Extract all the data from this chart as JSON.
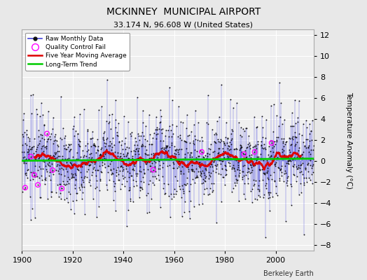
{
  "title": "MCKINNEY  MUNICIPAL AIRPORT",
  "subtitle": "33.174 N, 96.608 W (United States)",
  "attribution": "Berkeley Earth",
  "ylabel": "Temperature Anomaly (°C)",
  "xlim": [
    1900,
    2015
  ],
  "ylim": [
    -8.5,
    12.5
  ],
  "yticks": [
    -8,
    -6,
    -4,
    -2,
    0,
    2,
    4,
    6,
    8,
    10,
    12
  ],
  "xticks": [
    1900,
    1920,
    1940,
    1960,
    1980,
    2000
  ],
  "bg_color": "#e8e8e8",
  "plot_bg_color": "#f0f0f0",
  "raw_line_color": "#4444dd",
  "raw_dot_color": "#111111",
  "ma_color": "#dd0000",
  "trend_color": "#00cc00",
  "qc_color": "#ff00ff",
  "seed": 17,
  "year_start": 1900,
  "year_end": 2014,
  "n_months": 1380
}
